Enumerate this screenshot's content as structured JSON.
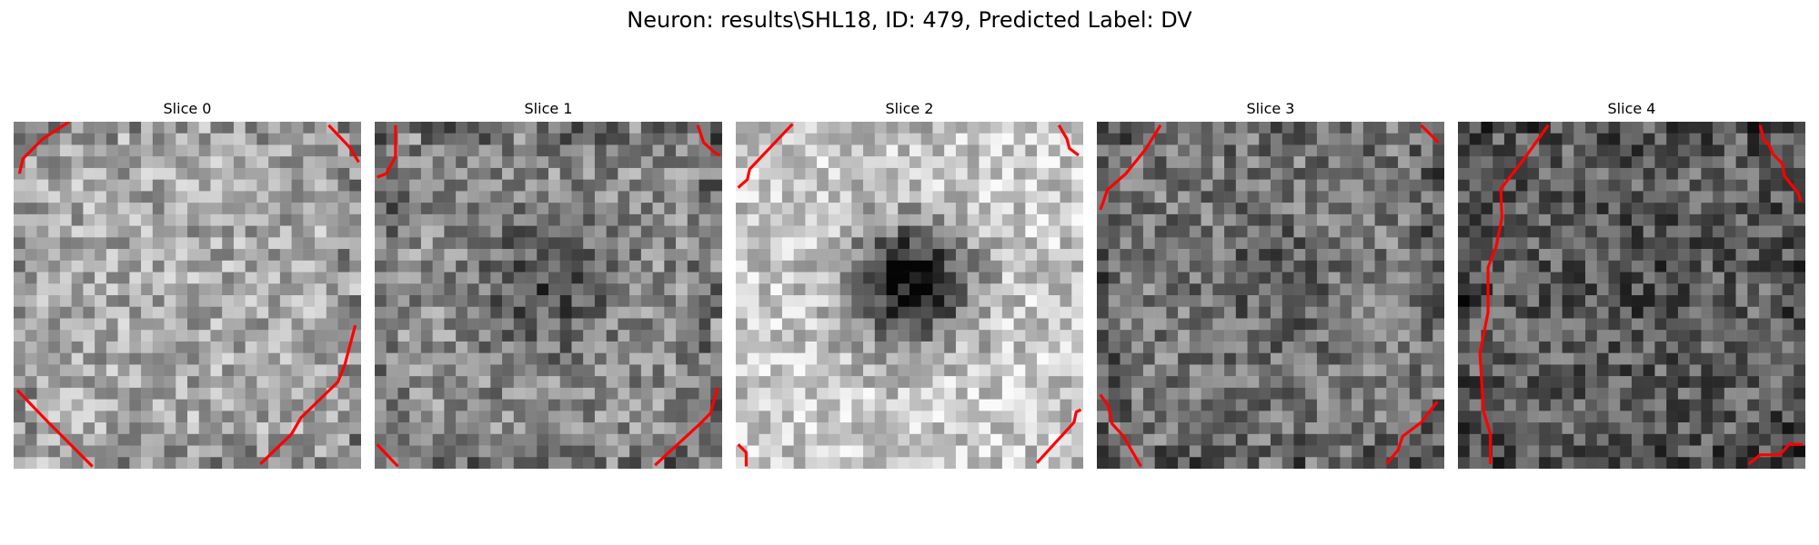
{
  "figure": {
    "title": "Neuron: results\\SHL18, ID: 479, Predicted Label: DV"
  },
  "panels": [
    {
      "title": "Slice 0",
      "seed": 11,
      "base": 168,
      "dark_blob": 0,
      "edge_dark": 0.9
    },
    {
      "title": "Slice 1",
      "seed": 23,
      "base": 140,
      "dark_blob": 0.35,
      "edge_dark": 1.0
    },
    {
      "title": "Slice 2",
      "seed": 37,
      "base": 205,
      "dark_blob": 1.0,
      "edge_dark": 0.3
    },
    {
      "title": "Slice 3",
      "seed": 51,
      "base": 120,
      "dark_blob": 0.15,
      "edge_dark": 0.9
    },
    {
      "title": "Slice 4",
      "seed": 67,
      "base": 95,
      "dark_blob": 0.1,
      "edge_dark": 0.7
    }
  ],
  "colors": {
    "contour": "#ff0000"
  }
}
